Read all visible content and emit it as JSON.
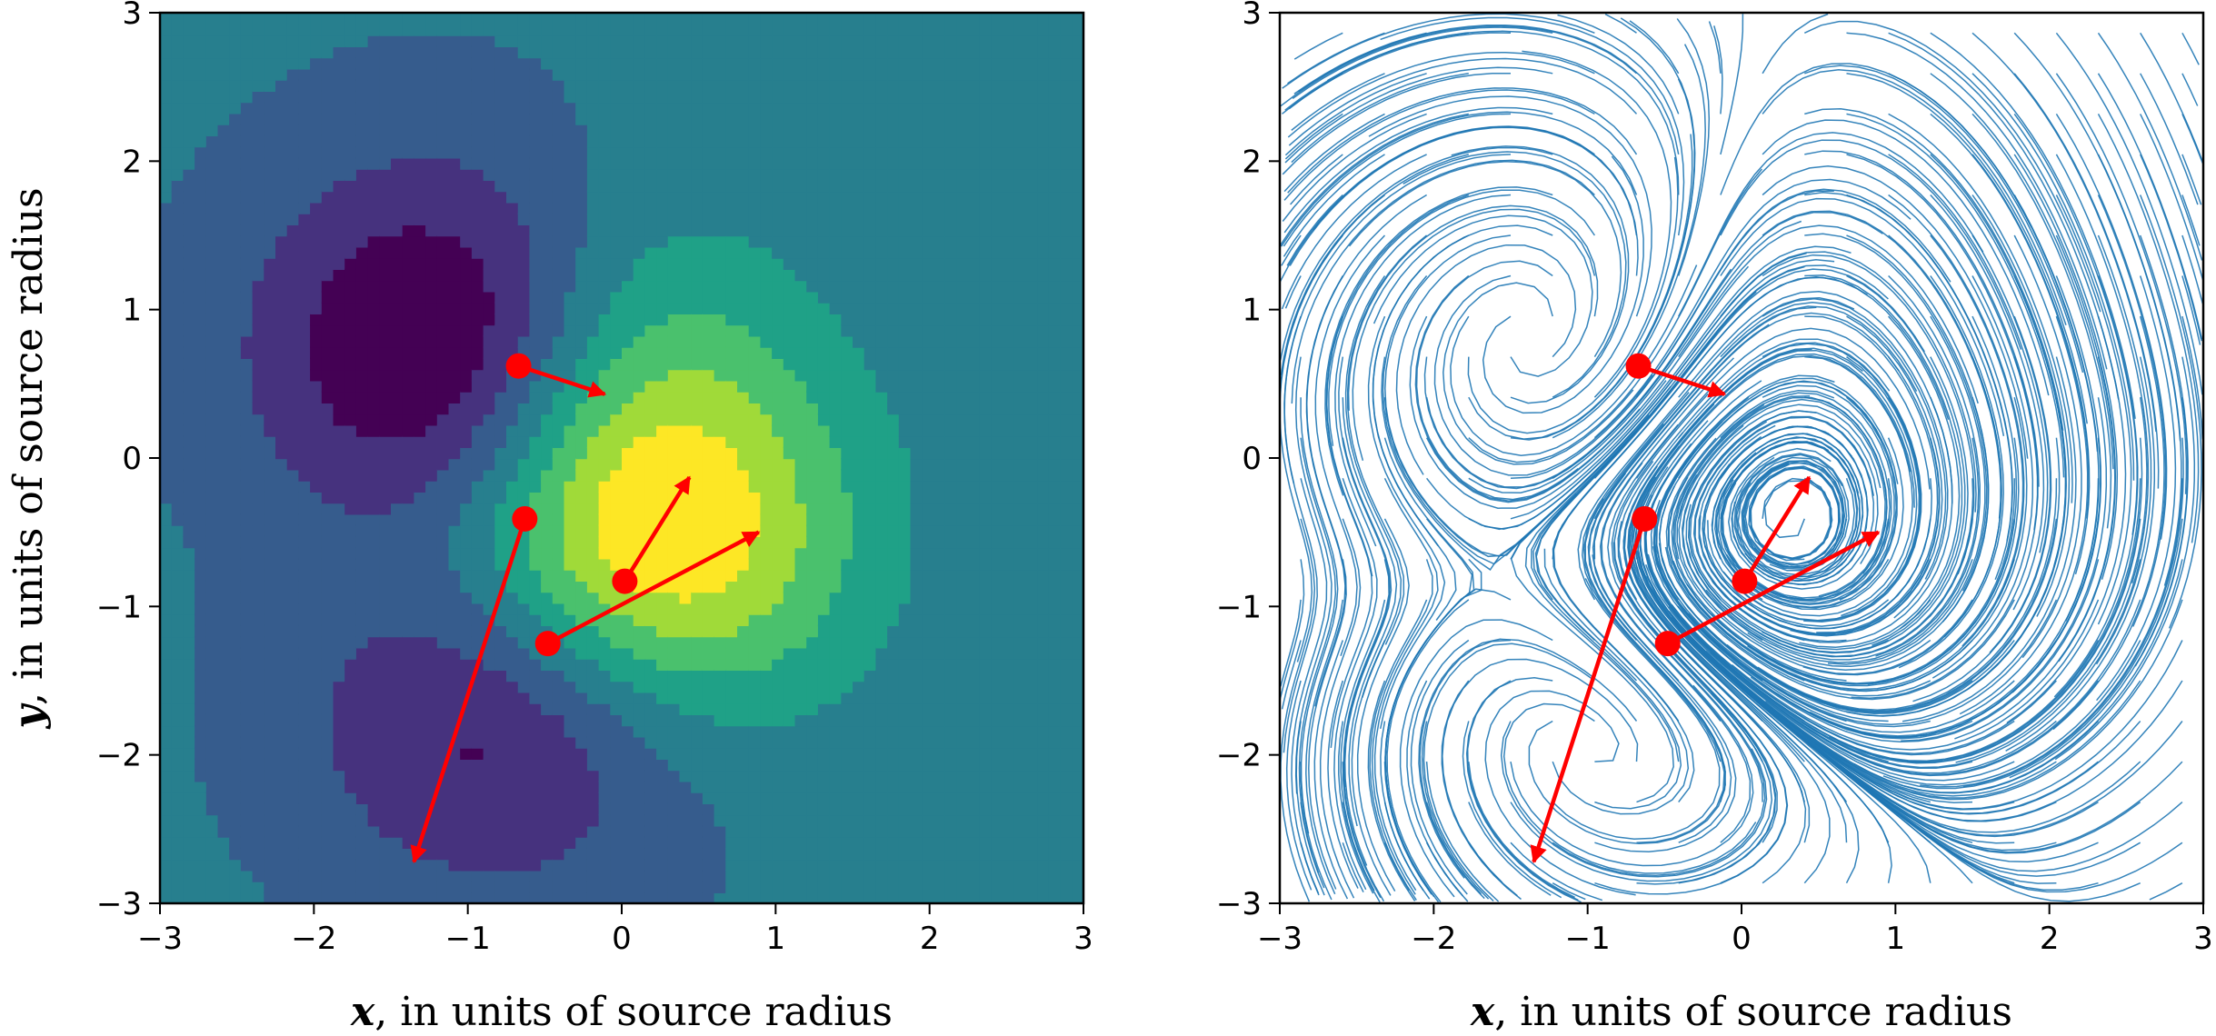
{
  "chart_data": [
    {
      "type": "contour",
      "title": "",
      "xlabel": {
        "var": "x",
        "text": ", in units of source radius"
      },
      "ylabel": {
        "var": "y",
        "text": ", in units of source radius"
      },
      "xlim": [
        -3,
        3
      ],
      "ylim": [
        -3,
        3
      ],
      "xticks": [
        "−3",
        "−2",
        "−1",
        "0",
        "1",
        "2",
        "3"
      ],
      "yticks": [
        "−3",
        "−2",
        "−1",
        "0",
        "1",
        "2",
        "3"
      ],
      "colormap": [
        "#440154",
        "#46327e",
        "#365c8d",
        "#277f8e",
        "#1fa187",
        "#4ac16d",
        "#a0da39",
        "#fde725"
      ],
      "background_color": "#277f8e",
      "grid": false,
      "sources": [
        {
          "x": -0.67,
          "y": 0.62,
          "u": 0.56,
          "v": -0.19
        },
        {
          "x": -0.63,
          "y": -0.41,
          "u": -0.72,
          "v": -2.31
        },
        {
          "x": 0.02,
          "y": -0.83,
          "u": 0.42,
          "v": 0.7
        },
        {
          "x": -0.48,
          "y": -1.25,
          "u": 1.37,
          "v": 0.75
        }
      ]
    },
    {
      "type": "streamplot",
      "title": "",
      "xlabel": {
        "var": "x",
        "text": ", in units of source radius"
      },
      "xlim": [
        -3,
        3
      ],
      "ylim": [
        -3,
        3
      ],
      "xticks": [
        "−3",
        "−2",
        "−1",
        "0",
        "1",
        "2",
        "3"
      ],
      "yticks": [
        "−3",
        "−2",
        "−1",
        "0",
        "1",
        "2",
        "3"
      ],
      "stream_color": "#1f77b4",
      "grid": false,
      "sources": [
        {
          "x": -0.67,
          "y": 0.62,
          "u": 0.56,
          "v": -0.19
        },
        {
          "x": -0.63,
          "y": -0.41,
          "u": -0.72,
          "v": -2.31
        },
        {
          "x": 0.02,
          "y": -0.83,
          "u": 0.42,
          "v": 0.7
        },
        {
          "x": -0.48,
          "y": -1.25,
          "u": 1.37,
          "v": 0.75
        }
      ]
    }
  ],
  "colors": {
    "marker": "#ff0000",
    "axis": "#000000"
  }
}
